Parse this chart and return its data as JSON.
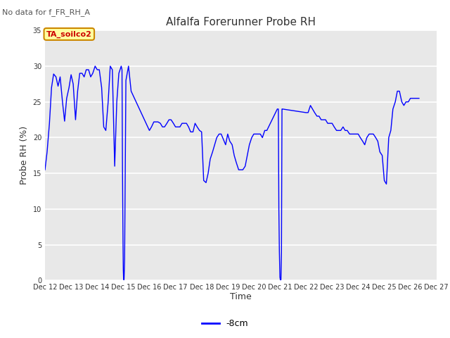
{
  "title": "Alfalfa Forerunner Probe RH",
  "xlabel": "Time",
  "ylabel": "Probe RH (%)",
  "no_data_text": "No data for f_FR_RH_A",
  "legend_label": "-8cm",
  "label_box_text": "TA_soilco2",
  "ylim": [
    0,
    35
  ],
  "yticks": [
    0,
    5,
    10,
    15,
    20,
    25,
    30,
    35
  ],
  "xtick_labels": [
    "Dec 12",
    "Dec 13",
    "Dec 14",
    "Dec 15",
    "Dec 16",
    "Dec 17",
    "Dec 18",
    "Dec 19",
    "Dec 20",
    "Dec 21",
    "Dec 22",
    "Dec 23",
    "Dec 24",
    "Dec 25",
    "Dec 26",
    "Dec 27"
  ],
  "line_color": "#0000FF",
  "fig_bg_color": "#FFFFFF",
  "plot_bg_color": "#E8E8E8",
  "grid_color": "#FFFFFF",
  "x_values": [
    12.0,
    12.08,
    12.17,
    12.25,
    12.33,
    12.42,
    12.5,
    12.58,
    12.67,
    12.75,
    12.83,
    12.92,
    13.0,
    13.08,
    13.17,
    13.25,
    13.33,
    13.42,
    13.5,
    13.58,
    13.67,
    13.75,
    13.83,
    13.92,
    14.0,
    14.08,
    14.17,
    14.25,
    14.33,
    14.42,
    14.5,
    14.58,
    14.67,
    14.75,
    14.83,
    14.92,
    14.95,
    14.97,
    14.99,
    15.0,
    15.01,
    15.02,
    15.03,
    15.05,
    15.1,
    15.2,
    15.3,
    16.0,
    16.08,
    16.17,
    16.25,
    16.33,
    16.42,
    16.5,
    16.58,
    16.67,
    16.75,
    16.83,
    16.92,
    17.0,
    17.08,
    17.17,
    17.25,
    17.33,
    17.42,
    17.5,
    17.58,
    17.67,
    17.75,
    17.83,
    17.92,
    18.0,
    18.08,
    18.17,
    18.25,
    18.33,
    18.42,
    18.5,
    18.58,
    18.67,
    18.75,
    18.83,
    18.92,
    19.0,
    19.08,
    19.17,
    19.25,
    19.33,
    19.42,
    19.5,
    19.58,
    19.67,
    19.75,
    19.83,
    19.92,
    20.0,
    20.08,
    20.17,
    20.25,
    20.33,
    20.42,
    20.5,
    20.9,
    20.92,
    20.94,
    20.96,
    20.98,
    21.0,
    21.02,
    21.04,
    21.06,
    21.08,
    21.1,
    22.0,
    22.08,
    22.17,
    22.25,
    22.33,
    22.42,
    22.5,
    22.58,
    22.67,
    22.75,
    22.83,
    22.92,
    23.0,
    23.08,
    23.17,
    23.25,
    23.33,
    23.42,
    23.5,
    23.58,
    23.67,
    23.75,
    23.83,
    23.92,
    24.0,
    24.08,
    24.17,
    24.25,
    24.33,
    24.42,
    24.5,
    24.58,
    24.67,
    24.75,
    24.83,
    24.92,
    25.0,
    25.08,
    25.17,
    25.25,
    25.33,
    25.42,
    25.5,
    25.58,
    25.67,
    25.75,
    25.83,
    25.92,
    26.0,
    26.08,
    26.17,
    26.25,
    26.33
  ],
  "y_values": [
    15.5,
    18.0,
    22.0,
    27.0,
    28.9,
    28.5,
    27.2,
    28.5,
    25.0,
    22.3,
    25.5,
    27.0,
    28.8,
    27.5,
    22.5,
    26.5,
    29.0,
    29.0,
    28.5,
    29.5,
    29.5,
    28.5,
    29.0,
    30.0,
    29.5,
    29.5,
    27.0,
    21.5,
    21.0,
    25.0,
    30.0,
    29.5,
    16.0,
    25.0,
    29.0,
    30.0,
    29.5,
    15.0,
    5.0,
    1.5,
    0.3,
    0.1,
    0.2,
    3.0,
    28.0,
    30.0,
    26.5,
    21.0,
    21.5,
    22.2,
    22.2,
    22.2,
    22.0,
    21.5,
    21.5,
    22.0,
    22.5,
    22.5,
    22.0,
    21.5,
    21.5,
    21.5,
    22.0,
    22.0,
    22.0,
    21.5,
    20.8,
    20.8,
    22.0,
    21.5,
    21.0,
    20.8,
    14.0,
    13.7,
    15.0,
    17.0,
    18.0,
    19.0,
    20.0,
    20.5,
    20.5,
    19.8,
    19.0,
    20.5,
    19.5,
    19.0,
    17.5,
    16.5,
    15.5,
    15.5,
    15.5,
    16.0,
    17.5,
    19.0,
    20.0,
    20.5,
    20.5,
    20.5,
    20.5,
    20.0,
    21.0,
    21.0,
    24.0,
    24.0,
    24.0,
    10.0,
    4.0,
    0.5,
    0.0,
    0.1,
    4.0,
    24.0,
    24.0,
    23.5,
    23.5,
    24.5,
    24.0,
    23.5,
    23.0,
    23.0,
    22.5,
    22.5,
    22.5,
    22.0,
    22.0,
    22.0,
    21.5,
    21.0,
    21.0,
    21.0,
    21.5,
    21.0,
    21.0,
    20.5,
    20.5,
    20.5,
    20.5,
    20.5,
    20.0,
    19.5,
    19.0,
    20.0,
    20.5,
    20.5,
    20.5,
    20.0,
    19.5,
    18.0,
    17.5,
    14.0,
    13.5,
    20.0,
    21.0,
    24.0,
    25.0,
    26.5,
    26.5,
    25.0,
    24.5,
    25.0,
    25.0,
    25.5,
    25.5,
    25.5,
    25.5,
    25.5
  ]
}
